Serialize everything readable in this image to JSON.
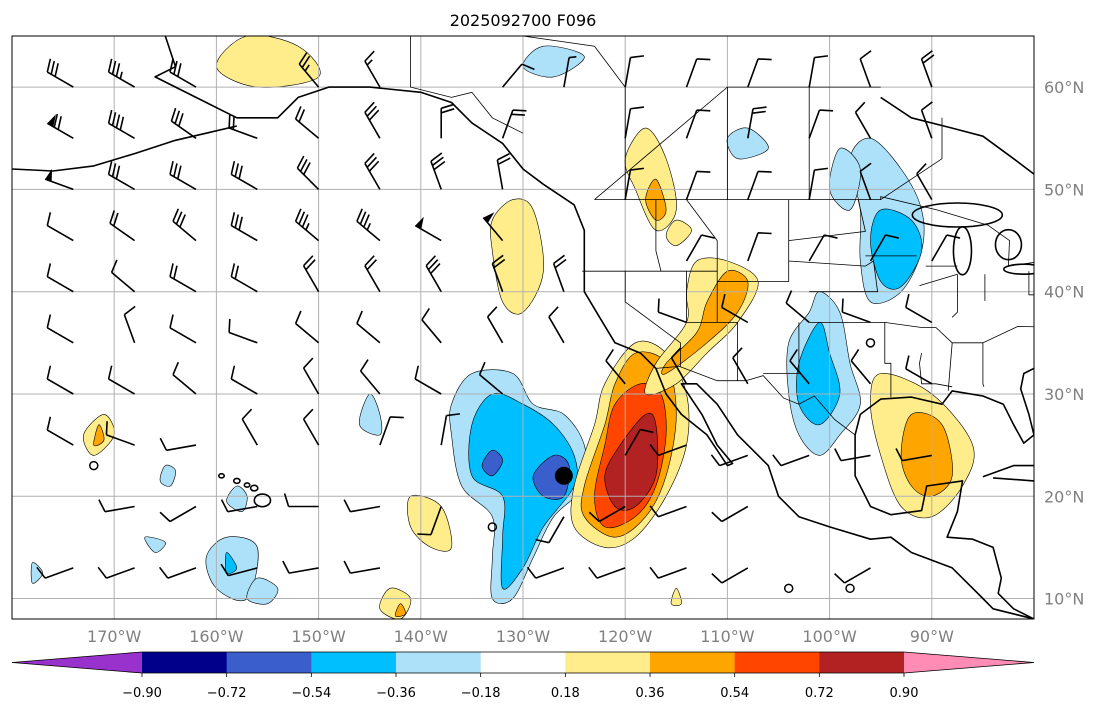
{
  "title": "2025092700 F096",
  "map": {
    "lon_range": [
      -180,
      -80
    ],
    "lat_range": [
      8,
      65
    ],
    "lon_ticks": [
      -170,
      -160,
      -150,
      -140,
      -130,
      -120,
      -110,
      -100,
      -90
    ],
    "lat_ticks": [
      10,
      20,
      30,
      40,
      50,
      60
    ],
    "lon_labels": [
      "170°W",
      "160°W",
      "150°W",
      "140°W",
      "130°W",
      "120°W",
      "110°W",
      "100°W",
      "90°W"
    ],
    "lat_labels": [
      "10°N",
      "20°N",
      "30°N",
      "40°N",
      "50°N",
      "60°N"
    ],
    "storm_center": {
      "lon": -126,
      "lat": 22
    },
    "calm_circles": [
      {
        "lon": -172,
        "lat": 23
      },
      {
        "lon": -133,
        "lat": 17
      },
      {
        "lon": -104,
        "lat": 11
      },
      {
        "lon": -98,
        "lat": 11
      },
      {
        "lon": -96,
        "lat": 35
      }
    ]
  },
  "colorbar": {
    "levels": [
      -0.9,
      -0.72,
      -0.54,
      -0.36,
      -0.18,
      0.18,
      0.36,
      0.54,
      0.72,
      0.9
    ],
    "labels": [
      "−0.90",
      "−0.72",
      "−0.54",
      "−0.36",
      "−0.18",
      "0.18",
      "0.36",
      "0.54",
      "0.72",
      "0.90"
    ],
    "colors": [
      "#9932cc",
      "#00008b",
      "#3a5fcd",
      "#00bfff",
      "#ade1fa",
      "#ffffff",
      "#ffec8b",
      "#ffa500",
      "#ff4500",
      "#b22222",
      "#ff8cb4"
    ],
    "extend": "both"
  }
}
